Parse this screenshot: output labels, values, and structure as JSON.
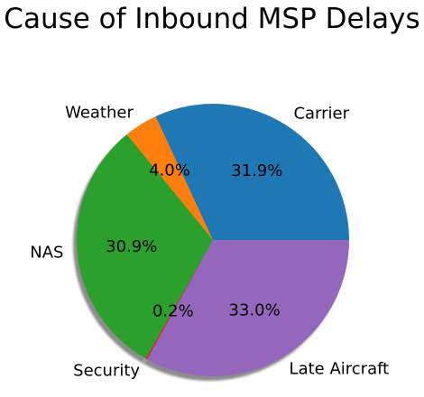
{
  "chart_data": {
    "type": "pie",
    "title": "Cause of Inbound MSP Delays",
    "categories": [
      "Carrier",
      "Weather",
      "NAS",
      "Security",
      "Late Aircraft"
    ],
    "values": [
      31.9,
      4.0,
      30.9,
      0.2,
      33.0
    ],
    "value_labels": [
      "31.9%",
      "4.0%",
      "30.9%",
      "0.2%",
      "33.0%"
    ],
    "colors": [
      "#1f77b4",
      "#ff7f0e",
      "#2ca02c",
      "#d62728",
      "#9467bd"
    ],
    "start_angle_degrees": 0,
    "direction": "counterclockwise",
    "shadow": true,
    "legend": "none"
  }
}
